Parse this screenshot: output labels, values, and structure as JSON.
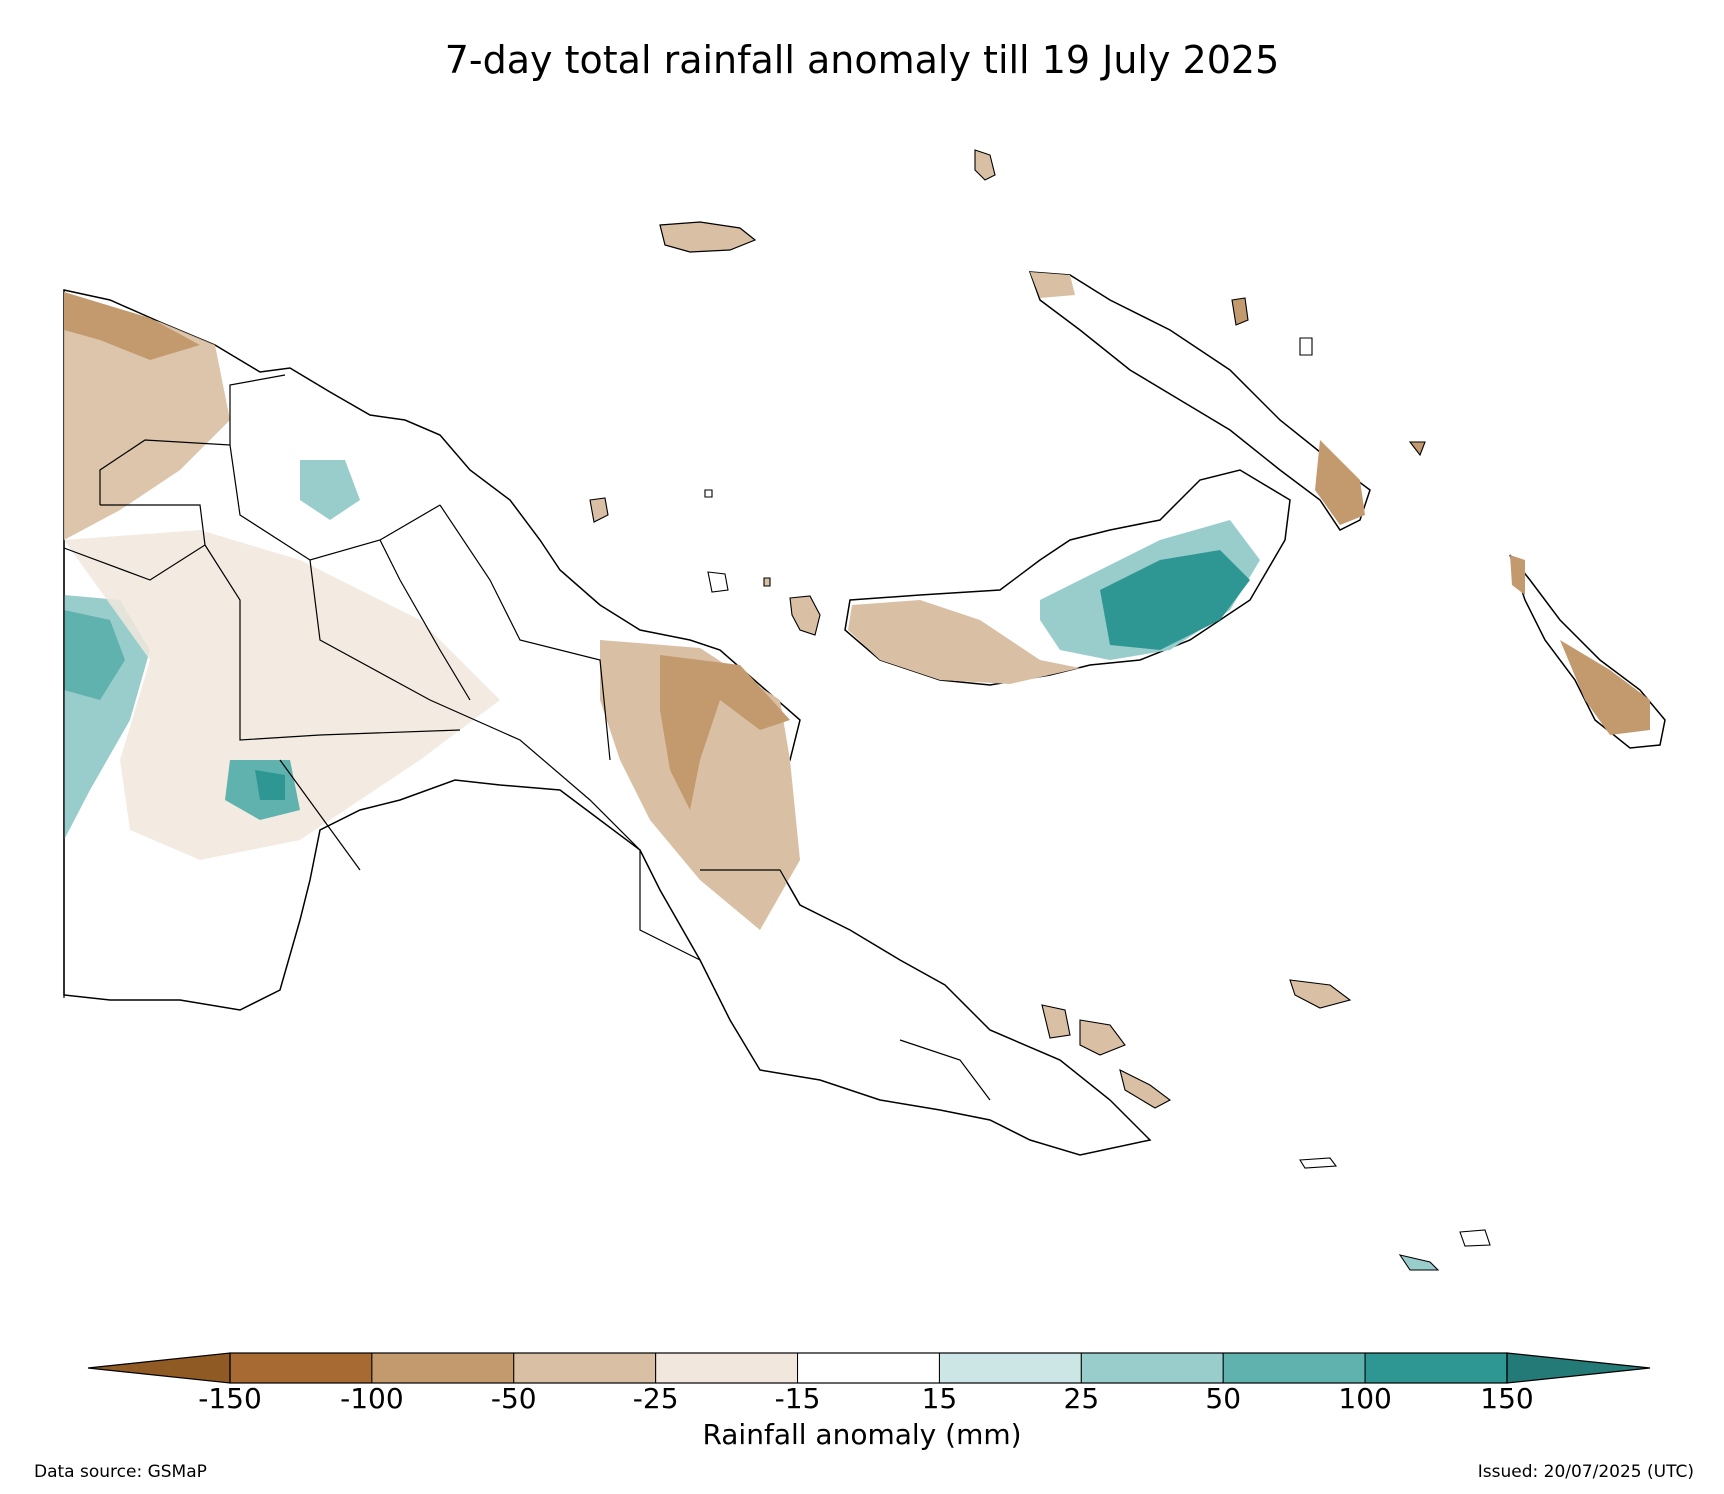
{
  "title": "7-day total rainfall anomaly till 19 July 2025",
  "colorbar": {
    "label": "Rainfall anomaly (mm)",
    "ticks": [
      "-150",
      "-100",
      "-50",
      "-25",
      "-15",
      "15",
      "25",
      "50",
      "100",
      "150"
    ],
    "colors": [
      "#a86a33",
      "#c39a6e",
      "#d9bfa3",
      "#f1e7dd",
      "#ffffff",
      "#cce6e5",
      "#99cdcb",
      "#5fb2ae",
      "#2f9793"
    ],
    "extend_low_color": "#8f5a24",
    "extend_high_color": "#237a77"
  },
  "footer": {
    "source": "Data source: GSMaP",
    "issued": "Issued: 20/07/2025 (UTC)"
  }
}
